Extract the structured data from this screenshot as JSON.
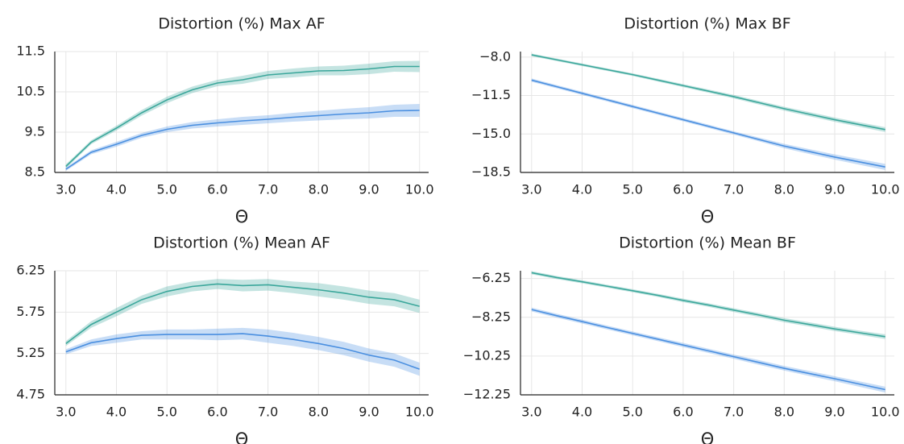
{
  "chart_data": [
    {
      "type": "line",
      "title": "Distortion (%) Max AF",
      "x_label": "Θ",
      "x": [
        3,
        3.5,
        4,
        4.5,
        5,
        5.5,
        6,
        6.5,
        7,
        7.5,
        8,
        8.5,
        9,
        9.5,
        10
      ],
      "xlim": [
        2.78,
        10.18
      ],
      "xticks": [
        {
          "value": 3,
          "label": "3.0"
        },
        {
          "value": 4,
          "label": "4.0"
        },
        {
          "value": 5,
          "label": "5.0"
        },
        {
          "value": 6,
          "label": "6.0"
        },
        {
          "value": 7,
          "label": "7.0"
        },
        {
          "value": 8,
          "label": "8.0"
        },
        {
          "value": 9,
          "label": "9.0"
        },
        {
          "value": 10,
          "label": "10.0"
        }
      ],
      "ylim": [
        8.5,
        11.5
      ],
      "yticks": [
        8.5,
        9.5,
        10.5,
        11.5
      ],
      "grid": true,
      "series": [
        {
          "color": "#3ba79b",
          "values": [
            8.65,
            9.25,
            9.6,
            9.98,
            10.3,
            10.55,
            10.72,
            10.8,
            10.92,
            10.97,
            11.02,
            11.03,
            11.07,
            11.13,
            11.13
          ],
          "upper": [
            8.7,
            9.3,
            9.66,
            10.05,
            10.38,
            10.63,
            10.8,
            10.9,
            11.02,
            11.08,
            11.13,
            11.15,
            11.2,
            11.26,
            11.27
          ],
          "lower": [
            8.6,
            9.2,
            9.54,
            9.91,
            10.22,
            10.47,
            10.64,
            10.7,
            10.82,
            10.86,
            10.91,
            10.91,
            10.94,
            11.0,
            10.99
          ]
        },
        {
          "color": "#4a8fe0",
          "values": [
            8.58,
            9.0,
            9.2,
            9.42,
            9.57,
            9.67,
            9.73,
            9.78,
            9.82,
            9.87,
            9.91,
            9.95,
            9.98,
            10.03,
            10.04
          ],
          "upper": [
            8.62,
            9.05,
            9.26,
            9.48,
            9.64,
            9.75,
            9.82,
            9.88,
            9.92,
            9.98,
            10.03,
            10.08,
            10.12,
            10.18,
            10.2
          ],
          "lower": [
            8.54,
            8.95,
            9.14,
            9.36,
            9.5,
            9.59,
            9.64,
            9.68,
            9.72,
            9.76,
            9.79,
            9.82,
            9.84,
            9.88,
            9.88
          ]
        }
      ]
    },
    {
      "type": "line",
      "title": "Distortion (%) Max BF",
      "x_label": "Θ",
      "x": [
        3,
        3.5,
        4,
        4.5,
        5,
        5.5,
        6,
        6.5,
        7,
        7.5,
        8,
        8.5,
        9,
        9.5,
        10
      ],
      "xlim": [
        2.78,
        10.18
      ],
      "xticks": [
        {
          "value": 3,
          "label": "3.0"
        },
        {
          "value": 4,
          "label": "4.0"
        },
        {
          "value": 5,
          "label": "5.0"
        },
        {
          "value": 6,
          "label": "6.0"
        },
        {
          "value": 7,
          "label": "7.0"
        },
        {
          "value": 8,
          "label": "8.0"
        },
        {
          "value": 9,
          "label": "9.0"
        },
        {
          "value": 10,
          "label": "10.0"
        }
      ],
      "ylim": [
        -18.5,
        -7.5
      ],
      "yticks": [
        {
          "value": -18.5,
          "label": "−18.5"
        },
        {
          "value": -15,
          "label": "−15.0"
        },
        {
          "value": -11.5,
          "label": "−11.5"
        },
        {
          "value": -8,
          "label": "−8.0"
        }
      ],
      "grid": true,
      "series": [
        {
          "color": "#3ba79b",
          "values": [
            -7.8,
            -8.25,
            -8.7,
            -9.15,
            -9.6,
            -10.1,
            -10.6,
            -11.1,
            -11.6,
            -12.15,
            -12.7,
            -13.2,
            -13.7,
            -14.15,
            -14.6
          ],
          "upper": [
            -7.68,
            -8.13,
            -8.58,
            -9.03,
            -9.48,
            -9.97,
            -10.46,
            -10.95,
            -11.44,
            -11.98,
            -12.52,
            -13.01,
            -13.5,
            -13.94,
            -14.38
          ],
          "lower": [
            -7.92,
            -8.37,
            -8.82,
            -9.27,
            -9.72,
            -10.23,
            -10.74,
            -11.25,
            -11.76,
            -12.32,
            -12.88,
            -13.39,
            -13.9,
            -14.36,
            -14.82
          ]
        },
        {
          "color": "#4a8fe0",
          "values": [
            -10.1,
            -10.7,
            -11.3,
            -11.9,
            -12.5,
            -13.1,
            -13.7,
            -14.3,
            -14.9,
            -15.5,
            -16.1,
            -16.6,
            -17.1,
            -17.55,
            -18.0
          ],
          "upper": [
            -9.95,
            -10.55,
            -11.15,
            -11.75,
            -12.35,
            -12.95,
            -13.55,
            -14.15,
            -14.75,
            -15.33,
            -15.9,
            -16.38,
            -16.86,
            -17.29,
            -17.72
          ],
          "lower": [
            -10.25,
            -10.85,
            -11.45,
            -12.05,
            -12.65,
            -13.25,
            -13.85,
            -14.45,
            -15.05,
            -15.67,
            -16.3,
            -16.82,
            -17.34,
            -17.81,
            -18.28
          ]
        }
      ]
    },
    {
      "type": "line",
      "title": "Distortion (%) Mean AF",
      "x_label": "Θ",
      "x": [
        3,
        3.5,
        4,
        4.5,
        5,
        5.5,
        6,
        6.5,
        7,
        7.5,
        8,
        8.5,
        9,
        9.5,
        10
      ],
      "xlim": [
        2.78,
        10.18
      ],
      "xticks": [
        {
          "value": 3,
          "label": "3.0"
        },
        {
          "value": 4,
          "label": "4.0"
        },
        {
          "value": 5,
          "label": "5.0"
        },
        {
          "value": 6,
          "label": "6.0"
        },
        {
          "value": 7,
          "label": "7.0"
        },
        {
          "value": 8,
          "label": "8.0"
        },
        {
          "value": 9,
          "label": "9.0"
        },
        {
          "value": 10,
          "label": "10.0"
        }
      ],
      "ylim": [
        4.75,
        6.25
      ],
      "yticks": [
        4.75,
        5.25,
        5.75,
        6.25
      ],
      "grid": true,
      "series": [
        {
          "color": "#3ba79b",
          "values": [
            5.37,
            5.6,
            5.75,
            5.9,
            6.0,
            6.06,
            6.09,
            6.07,
            6.08,
            6.05,
            6.02,
            5.98,
            5.93,
            5.9,
            5.82
          ],
          "upper": [
            5.4,
            5.64,
            5.8,
            5.95,
            6.06,
            6.12,
            6.15,
            6.14,
            6.15,
            6.12,
            6.1,
            6.06,
            6.01,
            5.98,
            5.9
          ],
          "lower": [
            5.34,
            5.56,
            5.7,
            5.85,
            5.94,
            6.0,
            6.03,
            6.0,
            6.01,
            5.98,
            5.94,
            5.9,
            5.85,
            5.82,
            5.74
          ]
        },
        {
          "color": "#4a8fe0",
          "values": [
            5.27,
            5.38,
            5.43,
            5.47,
            5.48,
            5.48,
            5.48,
            5.49,
            5.46,
            5.42,
            5.37,
            5.31,
            5.23,
            5.17,
            5.06
          ],
          "upper": [
            5.3,
            5.42,
            5.48,
            5.52,
            5.54,
            5.54,
            5.55,
            5.56,
            5.54,
            5.5,
            5.45,
            5.39,
            5.31,
            5.25,
            5.14
          ],
          "lower": [
            5.24,
            5.34,
            5.38,
            5.42,
            5.42,
            5.42,
            5.41,
            5.42,
            5.38,
            5.34,
            5.29,
            5.23,
            5.15,
            5.09,
            4.98
          ]
        }
      ]
    },
    {
      "type": "line",
      "title": "Distortion (%) Mean BF",
      "x_label": "Θ",
      "x": [
        3,
        3.5,
        4,
        4.5,
        5,
        5.5,
        6,
        6.5,
        7,
        7.5,
        8,
        8.5,
        9,
        9.5,
        10
      ],
      "xlim": [
        2.78,
        10.18
      ],
      "xticks": [
        {
          "value": 3,
          "label": "3.0"
        },
        {
          "value": 4,
          "label": "4.0"
        },
        {
          "value": 5,
          "label": "5.0"
        },
        {
          "value": 6,
          "label": "6.0"
        },
        {
          "value": 7,
          "label": "7.0"
        },
        {
          "value": 8,
          "label": "8.0"
        },
        {
          "value": 9,
          "label": "9.0"
        },
        {
          "value": 10,
          "label": "10.0"
        }
      ],
      "ylim": [
        -12.25,
        -5.85
      ],
      "yticks": [
        {
          "value": -12.25,
          "label": "−12.25"
        },
        {
          "value": -10.25,
          "label": "−10.25"
        },
        {
          "value": -8.25,
          "label": "−8.25"
        },
        {
          "value": -6.25,
          "label": "−6.25"
        }
      ],
      "grid": true,
      "series": [
        {
          "color": "#3ba79b",
          "values": [
            -5.95,
            -6.2,
            -6.42,
            -6.65,
            -6.88,
            -7.12,
            -7.38,
            -7.62,
            -7.88,
            -8.13,
            -8.4,
            -8.62,
            -8.85,
            -9.05,
            -9.25
          ],
          "upper": [
            -5.87,
            -6.12,
            -6.34,
            -6.57,
            -6.8,
            -7.04,
            -7.29,
            -7.53,
            -7.78,
            -8.03,
            -8.29,
            -8.51,
            -8.74,
            -8.94,
            -9.13
          ],
          "lower": [
            -6.03,
            -6.28,
            -6.5,
            -6.73,
            -6.96,
            -7.2,
            -7.47,
            -7.71,
            -7.98,
            -8.23,
            -8.51,
            -8.73,
            -8.96,
            -9.16,
            -9.37
          ]
        },
        {
          "color": "#4a8fe0",
          "values": [
            -7.85,
            -8.17,
            -8.47,
            -8.78,
            -9.08,
            -9.38,
            -9.68,
            -9.98,
            -10.28,
            -10.58,
            -10.88,
            -11.15,
            -11.42,
            -11.7,
            -11.98
          ],
          "upper": [
            -7.75,
            -8.07,
            -8.37,
            -8.68,
            -8.98,
            -9.28,
            -9.57,
            -9.87,
            -10.17,
            -10.46,
            -10.76,
            -11.02,
            -11.29,
            -11.56,
            -11.83
          ],
          "lower": [
            -7.95,
            -8.27,
            -8.57,
            -8.88,
            -9.18,
            -9.48,
            -9.79,
            -10.09,
            -10.39,
            -10.7,
            -11.0,
            -11.28,
            -11.55,
            -11.84,
            -12.13
          ]
        }
      ]
    }
  ]
}
